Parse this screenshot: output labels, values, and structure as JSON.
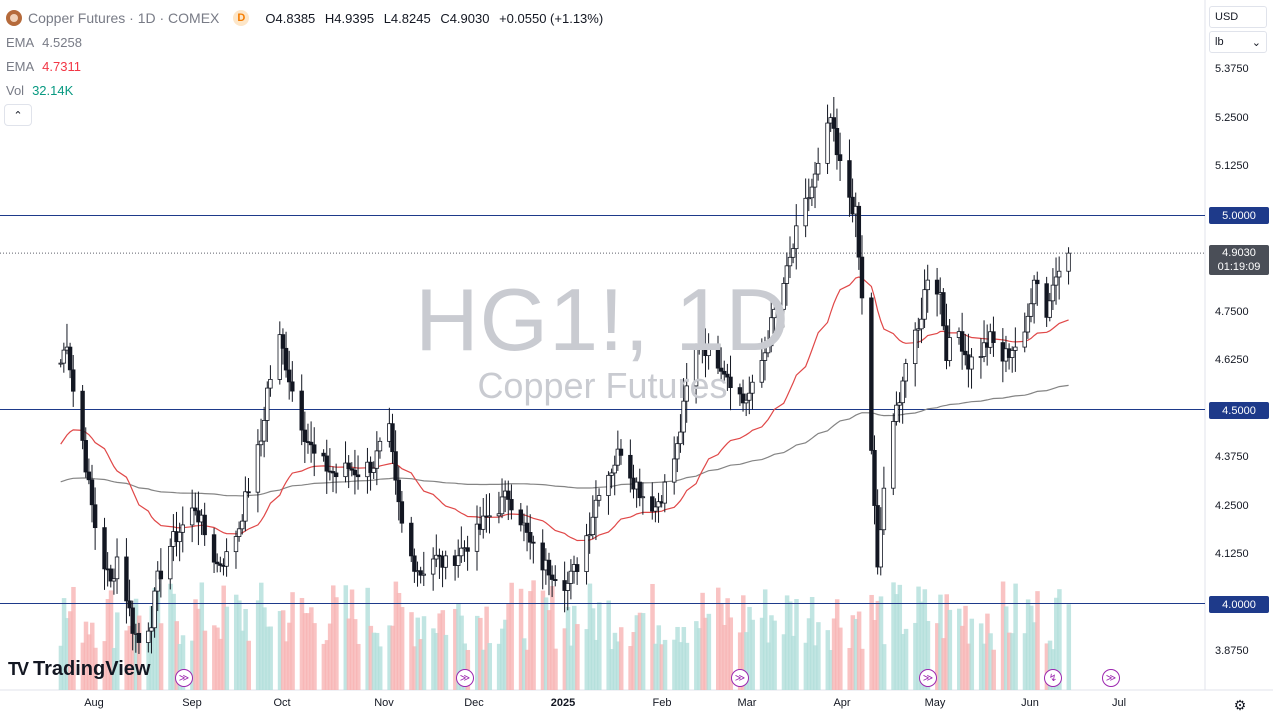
{
  "legend": {
    "symbol_title": "Copper Futures · 1D · COMEX",
    "timeframe_badge": "D",
    "ohlc": {
      "o_label": "O",
      "o": "4.8385",
      "h_label": "H",
      "h": "4.9395",
      "l_label": "L",
      "l": "4.8245",
      "c_label": "C",
      "c": "4.9030",
      "change": "+0.0550 (+1.13%)"
    },
    "ema1_label": "EMA",
    "ema1_value": "4.5258",
    "ema2_label": "EMA",
    "ema2_value": "4.7311",
    "vol_label": "Vol",
    "vol_value": "32.14K"
  },
  "colors": {
    "up": "#089981",
    "down": "#f23645",
    "ema1": "#848484",
    "ema2": "#e04848",
    "level": "#1e3a8a",
    "vol_up": "#b2dfdb",
    "vol_down": "#f8b4b4",
    "ema1_text": "#787b86",
    "ema2_text": "#f23645",
    "vol_text": "#089981"
  },
  "unit": {
    "currency": "USD",
    "measure": "lb"
  },
  "watermark": {
    "symbol": "HG1!, 1D",
    "name": "Copper Futures"
  },
  "branding": {
    "logo_text": "TradingView"
  },
  "chart_data": {
    "type": "candlestick",
    "title": "Copper Futures · 1D · COMEX",
    "y_axis": {
      "ticks": [
        "5.3750",
        "5.2500",
        "5.1250",
        "4.7500",
        "4.6250",
        "4.3750",
        "4.2500",
        "4.1250",
        "3.8750"
      ],
      "range": [
        3.82,
        5.42
      ]
    },
    "x_axis": {
      "ticks": [
        "Aug",
        "Sep",
        "Oct",
        "Nov",
        "Dec",
        "2025",
        "Feb",
        "Mar",
        "Apr",
        "May",
        "Jun",
        "Jul"
      ]
    },
    "levels": [
      {
        "value": 5.0,
        "label": "5.0000"
      },
      {
        "value": 4.5,
        "label": "4.5000"
      },
      {
        "value": 4.0,
        "label": "4.0000"
      }
    ],
    "last_price": {
      "value": 4.903,
      "label": "4.9030",
      "countdown": "01:19:09"
    },
    "price_path": [
      [
        "Jul 22",
        4.62
      ],
      [
        "Jul 24",
        4.68
      ],
      [
        "Jul 26",
        4.55
      ],
      [
        "Jul 29",
        4.42
      ],
      [
        "Jul 31",
        4.3
      ],
      [
        "Aug 2",
        4.2
      ],
      [
        "Aug 5",
        4.1
      ],
      [
        "Aug 7",
        4.05
      ],
      [
        "Aug 9",
        4.12
      ],
      [
        "Aug 12",
        4.02
      ],
      [
        "Aug 14",
        3.94
      ],
      [
        "Aug 16",
        3.9
      ],
      [
        "Aug 20",
        3.96
      ],
      [
        "Aug 22",
        4.06
      ],
      [
        "Aug 26",
        4.15
      ],
      [
        "Aug 30",
        4.2
      ],
      [
        "Sep 3",
        4.25
      ],
      [
        "Sep 6",
        4.18
      ],
      [
        "Sep 10",
        4.1
      ],
      [
        "Sep 13",
        4.12
      ],
      [
        "Sep 17",
        4.2
      ],
      [
        "Sep 20",
        4.3
      ],
      [
        "Sep 24",
        4.42
      ],
      [
        "Sep 26",
        4.55
      ],
      [
        "Sep 30",
        4.68
      ],
      [
        "Oct 2",
        4.62
      ],
      [
        "Oct 4",
        4.55
      ],
      [
        "Oct 8",
        4.44
      ],
      [
        "Oct 11",
        4.38
      ],
      [
        "Oct 15",
        4.35
      ],
      [
        "Oct 18",
        4.33
      ],
      [
        "Oct 22",
        4.35
      ],
      [
        "Oct 25",
        4.34
      ],
      [
        "Oct 30",
        4.36
      ],
      [
        "Nov 1",
        4.4
      ],
      [
        "Nov 4",
        4.44
      ],
      [
        "Nov 6",
        4.3
      ],
      [
        "Nov 8",
        4.2
      ],
      [
        "Nov 11",
        4.12
      ],
      [
        "Nov 14",
        4.08
      ],
      [
        "Nov 18",
        4.12
      ],
      [
        "Nov 22",
        4.1
      ],
      [
        "Nov 26",
        4.13
      ],
      [
        "Dec 2",
        4.18
      ],
      [
        "Dec 5",
        4.22
      ],
      [
        "Dec 9",
        4.25
      ],
      [
        "Dec 12",
        4.28
      ],
      [
        "Dec 16",
        4.22
      ],
      [
        "Dec 19",
        4.15
      ],
      [
        "Dec 23",
        4.1
      ],
      [
        "Dec 27",
        4.08
      ],
      [
        "Dec 31",
        4.05
      ],
      [
        "Jan 3",
        4.1
      ],
      [
        "Jan 7",
        4.2
      ],
      [
        "Jan 10",
        4.3
      ],
      [
        "Jan 14",
        4.35
      ],
      [
        "Jan 17",
        4.4
      ],
      [
        "Jan 21",
        4.32
      ],
      [
        "Jan 24",
        4.28
      ],
      [
        "Jan 28",
        4.25
      ],
      [
        "Jan 31",
        4.3
      ],
      [
        "Feb 4",
        4.4
      ],
      [
        "Feb 7",
        4.55
      ],
      [
        "Feb 11",
        4.68
      ],
      [
        "Feb 14",
        4.65
      ],
      [
        "Feb 18",
        4.62
      ],
      [
        "Feb 21",
        4.58
      ],
      [
        "Feb 25",
        4.52
      ],
      [
        "Feb 28",
        4.55
      ],
      [
        "Mar 4",
        4.65
      ],
      [
        "Mar 7",
        4.75
      ],
      [
        "Mar 11",
        4.85
      ],
      [
        "Mar 14",
        4.95
      ],
      [
        "Mar 18",
        5.05
      ],
      [
        "Mar 21",
        5.12
      ],
      [
        "Mar 25",
        5.25
      ],
      [
        "Mar 27",
        5.15
      ],
      [
        "Mar 31",
        5.05
      ],
      [
        "Apr 2",
        5.0
      ],
      [
        "Apr 4",
        4.78
      ],
      [
        "Apr 7",
        4.4
      ],
      [
        "Apr 9",
        4.08
      ],
      [
        "Apr 11",
        4.3
      ],
      [
        "Apr 15",
        4.5
      ],
      [
        "Apr 18",
        4.62
      ],
      [
        "Apr 22",
        4.7
      ],
      [
        "Apr 25",
        4.85
      ],
      [
        "Apr 29",
        4.8
      ],
      [
        "May 1",
        4.65
      ],
      [
        "May 5",
        4.7
      ],
      [
        "May 8",
        4.62
      ],
      [
        "May 12",
        4.65
      ],
      [
        "May 15",
        4.68
      ],
      [
        "May 19",
        4.63
      ],
      [
        "May 22",
        4.66
      ],
      [
        "May 26",
        4.68
      ],
      [
        "May 29",
        4.85
      ],
      [
        "Jun 2",
        4.75
      ],
      [
        "Jun 4",
        4.82
      ],
      [
        "Jun 6",
        4.88
      ],
      [
        "Jun 9",
        4.903
      ]
    ]
  }
}
